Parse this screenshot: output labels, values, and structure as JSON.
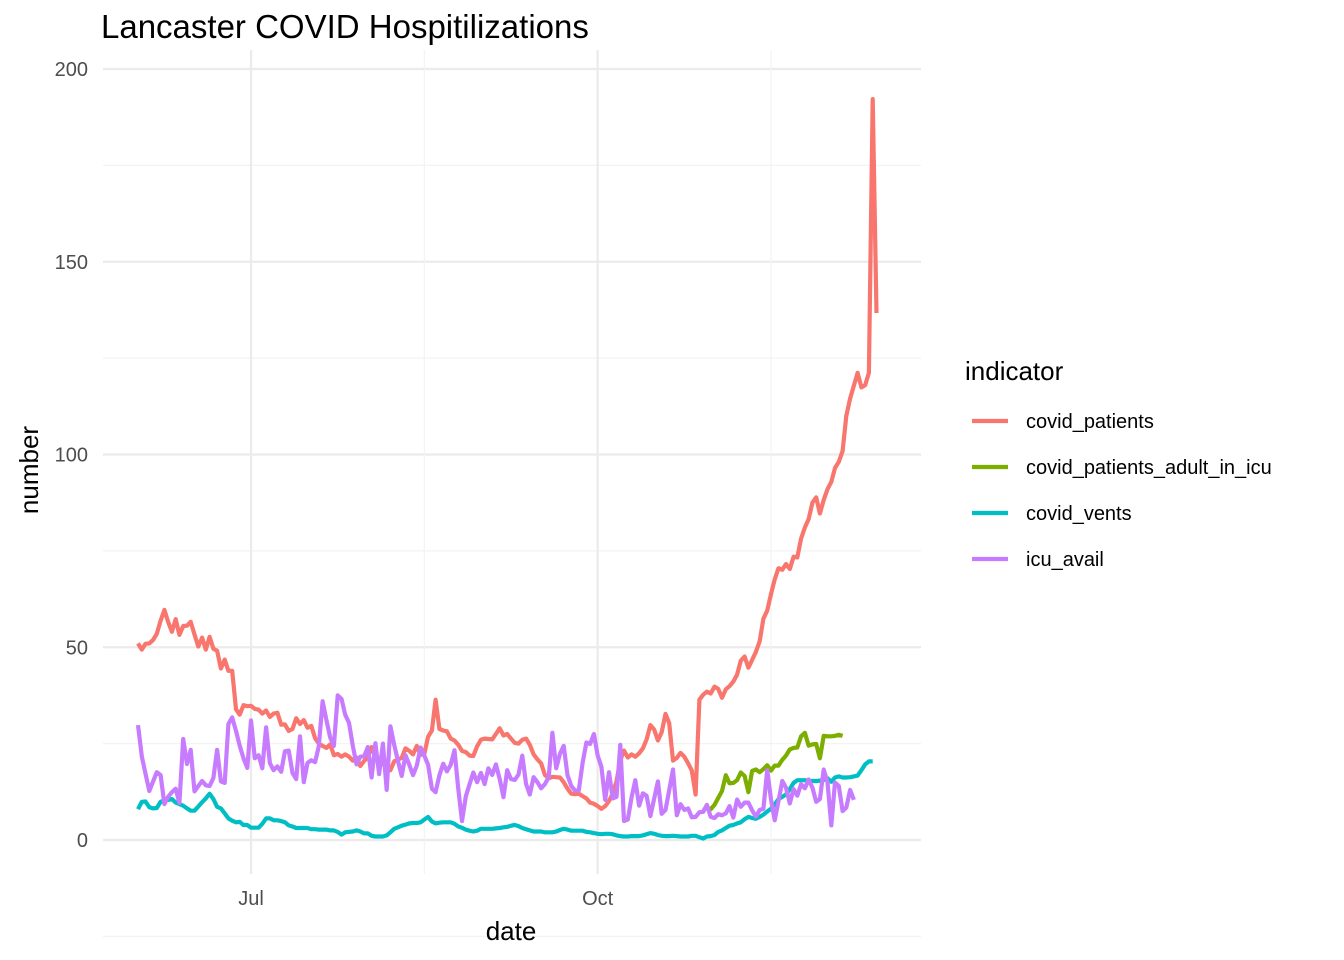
{
  "chart_data": {
    "type": "line",
    "title": "Lancaster COVID Hospitilizations",
    "xlabel": "date",
    "ylabel": "number",
    "x_tick_labels": [
      "Jul",
      "Oct"
    ],
    "y_ticks": [
      0,
      50,
      100,
      150,
      200
    ],
    "ylim": [
      -8,
      200
    ],
    "legend": {
      "title": "indicator",
      "placement": "right"
    },
    "grid": true,
    "x_dates": [
      "2020-06-01",
      "2020-06-02",
      "2020-06-03",
      "2020-06-04",
      "2020-06-05",
      "2020-06-06",
      "2020-06-07",
      "2020-06-08",
      "2020-06-09",
      "2020-06-10",
      "2020-06-11",
      "2020-06-12",
      "2020-06-13",
      "2020-06-14",
      "2020-06-15",
      "2020-06-16",
      "2020-06-17",
      "2020-06-18",
      "2020-06-19",
      "2020-06-20",
      "2020-06-21",
      "2020-06-22",
      "2020-06-23",
      "2020-06-24",
      "2020-06-25",
      "2020-06-26",
      "2020-06-27",
      "2020-06-28",
      "2020-06-29",
      "2020-06-30",
      "2020-07-01",
      "2020-07-02",
      "2020-07-03",
      "2020-07-04",
      "2020-07-05",
      "2020-07-06",
      "2020-07-07",
      "2020-07-08",
      "2020-07-09",
      "2020-07-10",
      "2020-07-11",
      "2020-07-12",
      "2020-07-13",
      "2020-07-14",
      "2020-07-15",
      "2020-07-16",
      "2020-07-17",
      "2020-07-18",
      "2020-07-19",
      "2020-07-20",
      "2020-07-21",
      "2020-07-22",
      "2020-07-23",
      "2020-07-24",
      "2020-07-25",
      "2020-07-26",
      "2020-07-27",
      "2020-07-28",
      "2020-07-29",
      "2020-07-30",
      "2020-07-31",
      "2020-08-01",
      "2020-08-02",
      "2020-08-03",
      "2020-08-04",
      "2020-08-05",
      "2020-08-06",
      "2020-08-07",
      "2020-08-08",
      "2020-08-09",
      "2020-08-10",
      "2020-08-11",
      "2020-08-12",
      "2020-08-13",
      "2020-08-14",
      "2020-08-15",
      "2020-08-16",
      "2020-08-17",
      "2020-08-18",
      "2020-08-19",
      "2020-08-20",
      "2020-08-21",
      "2020-08-22",
      "2020-08-23",
      "2020-08-24",
      "2020-08-25",
      "2020-08-26",
      "2020-08-27",
      "2020-08-28",
      "2020-08-29",
      "2020-08-30",
      "2020-08-31",
      "2020-09-01",
      "2020-09-02",
      "2020-09-03",
      "2020-09-04",
      "2020-09-05",
      "2020-09-06",
      "2020-09-07",
      "2020-09-08",
      "2020-09-09",
      "2020-09-10",
      "2020-09-11",
      "2020-09-12",
      "2020-09-13",
      "2020-09-14",
      "2020-09-15",
      "2020-09-16",
      "2020-09-17",
      "2020-09-18",
      "2020-09-19",
      "2020-09-20",
      "2020-09-21",
      "2020-09-22",
      "2020-09-23",
      "2020-09-24",
      "2020-09-25",
      "2020-09-26",
      "2020-09-27",
      "2020-09-28",
      "2020-09-29",
      "2020-09-30",
      "2020-10-01",
      "2020-10-02",
      "2020-10-03",
      "2020-10-04",
      "2020-10-05",
      "2020-10-06",
      "2020-10-07",
      "2020-10-08",
      "2020-10-09",
      "2020-10-10",
      "2020-10-11",
      "2020-10-12",
      "2020-10-13",
      "2020-10-14",
      "2020-10-15",
      "2020-10-16",
      "2020-10-17",
      "2020-10-18",
      "2020-10-19",
      "2020-10-20",
      "2020-10-21",
      "2020-10-22",
      "2020-10-23",
      "2020-10-24",
      "2020-10-25",
      "2020-10-26",
      "2020-10-27",
      "2020-10-28",
      "2020-10-29",
      "2020-10-30",
      "2020-10-31",
      "2020-11-01",
      "2020-11-02",
      "2020-11-03",
      "2020-11-04",
      "2020-11-05",
      "2020-11-06",
      "2020-11-07",
      "2020-11-08",
      "2020-11-09",
      "2020-11-10",
      "2020-11-11",
      "2020-11-12",
      "2020-11-13",
      "2020-11-14",
      "2020-11-15",
      "2020-11-16",
      "2020-11-17",
      "2020-11-18",
      "2020-11-19",
      "2020-11-20",
      "2020-11-21",
      "2020-11-22",
      "2020-11-23",
      "2020-11-24",
      "2020-11-25",
      "2020-11-26",
      "2020-11-27",
      "2020-11-28",
      "2020-11-29",
      "2020-11-30",
      "2020-12-01",
      "2020-12-02",
      "2020-12-03",
      "2020-12-04",
      "2020-12-05",
      "2020-12-06",
      "2020-12-07",
      "2020-12-08",
      "2020-12-09",
      "2020-12-10",
      "2020-12-11",
      "2020-12-12",
      "2020-12-13",
      "2020-12-14",
      "2020-12-15",
      "2020-12-16"
    ],
    "series": [
      {
        "name": "covid_patients",
        "color": "#f8766d",
        "values": [
          51.0,
          49.4,
          50.9,
          51.0,
          51.9,
          53.5,
          56.9,
          59.7,
          56.6,
          54.0,
          57.3,
          53.2,
          55.5,
          55.6,
          56.6,
          53.3,
          50.2,
          52.5,
          49.4,
          52.7,
          49.6,
          49.1,
          44.5,
          46.8,
          43.9,
          43.9,
          33.9,
          32.5,
          35.0,
          34.7,
          34.8,
          34.0,
          33.8,
          32.8,
          33.6,
          31.9,
          32.8,
          33.0,
          29.9,
          30.0,
          28.3,
          28.8,
          31.6,
          30.1,
          31.1,
          29.1,
          29.6,
          26.4,
          25.0,
          24.4,
          23.9,
          24.8,
          22.0,
          22.3,
          21.6,
          22.2,
          21.6,
          20.6,
          21.4,
          19.2,
          20.5,
          21.5,
          24.1,
          21.4,
          20.0,
          19.9,
          18.4,
          18.1,
          20.4,
          20.9,
          21.3,
          23.8,
          23.1,
          22.2,
          24.4,
          22.1,
          22.3,
          26.8,
          28.4,
          36.4,
          28.8,
          28.4,
          28.2,
          26.3,
          25.8,
          24.7,
          23.1,
          22.8,
          21.9,
          21.8,
          24.3,
          26.0,
          26.3,
          26.2,
          26.1,
          27.5,
          29.0,
          27.1,
          27.5,
          26.3,
          25.2,
          25.0,
          26.0,
          26.3,
          24.7,
          22.2,
          20.9,
          19.9,
          16.9,
          16.0,
          16.4,
          16.3,
          16.2,
          15.0,
          13.3,
          12.0,
          11.9,
          12.0,
          11.4,
          10.8,
          9.7,
          9.4,
          8.8,
          8.1,
          8.8,
          10.1,
          12.1,
          15.2,
          20.7,
          23.2,
          21.4,
          22.2,
          21.6,
          22.5,
          23.8,
          26.1,
          29.8,
          28.6,
          25.8,
          28.0,
          32.7,
          30.3,
          20.6,
          21.3,
          22.6,
          21.6,
          19.9,
          18.0,
          11.8,
          36.4,
          37.7,
          38.5,
          38.0,
          39.8,
          39.2,
          36.9,
          39.1,
          39.9,
          41.1,
          42.9,
          46.5,
          47.6,
          44.7,
          46.7,
          48.8,
          51.6,
          57.4,
          59.5,
          63.8,
          67.6,
          70.5,
          70.1,
          71.6,
          70.3,
          73.5,
          73.3,
          78.2,
          81.1,
          83.2,
          87.5,
          88.9,
          84.7,
          88.2,
          91.0,
          92.9,
          96.5,
          98.1,
          100.9,
          110.0,
          114.5,
          117.9,
          121.2,
          117.4,
          118.0,
          121.2,
          192.2,
          136.7
        ]
      },
      {
        "name": "covid_patients_adult_in_icu",
        "color": "#7cae00",
        "values": [
          null,
          null,
          null,
          null,
          null,
          null,
          null,
          null,
          null,
          null,
          null,
          null,
          null,
          null,
          null,
          null,
          null,
          null,
          null,
          null,
          null,
          null,
          null,
          null,
          null,
          null,
          null,
          null,
          null,
          null,
          null,
          null,
          null,
          null,
          null,
          null,
          null,
          null,
          null,
          null,
          null,
          null,
          null,
          null,
          null,
          null,
          null,
          null,
          null,
          null,
          null,
          null,
          null,
          null,
          null,
          null,
          null,
          null,
          null,
          null,
          null,
          null,
          null,
          null,
          null,
          null,
          null,
          null,
          null,
          null,
          null,
          null,
          null,
          null,
          null,
          null,
          null,
          null,
          null,
          null,
          null,
          null,
          null,
          null,
          null,
          null,
          null,
          null,
          null,
          null,
          null,
          null,
          null,
          null,
          null,
          null,
          null,
          null,
          null,
          null,
          null,
          null,
          null,
          null,
          null,
          null,
          null,
          null,
          null,
          null,
          null,
          null,
          null,
          null,
          null,
          null,
          null,
          null,
          null,
          null,
          null,
          null,
          null,
          null,
          null,
          null,
          null,
          null,
          null,
          null,
          null,
          null,
          null,
          null,
          null,
          null,
          null,
          null,
          null,
          null,
          null,
          null,
          null,
          null,
          null,
          null,
          null,
          null,
          null,
          null,
          7.8,
          8.3,
          8.0,
          9.1,
          10.9,
          12.7,
          16.8,
          14.7,
          14.8,
          15.5,
          17.5,
          16.6,
          12.4,
          17.9,
          18.3,
          17.6,
          18.4,
          19.4,
          18.0,
          19.3,
          19.3,
          20.8,
          21.9,
          23.5,
          23.9,
          24.0,
          26.9,
          27.8,
          24.5,
          24.8,
          24.9,
          21.2,
          27.0,
          26.9,
          26.9,
          27.0,
          27.3,
          27.0
        ]
      },
      {
        "name": "covid_vents",
        "color": "#00bfc4",
        "values": [
          8.0,
          9.9,
          10.0,
          8.5,
          8.2,
          8.3,
          9.9,
          10.3,
          10.4,
          10.6,
          9.7,
          9.3,
          8.9,
          8.2,
          7.6,
          7.6,
          8.7,
          9.8,
          10.8,
          12.0,
          10.6,
          8.6,
          8.2,
          6.9,
          5.6,
          5.0,
          4.6,
          4.7,
          3.9,
          3.9,
          3.2,
          3.2,
          3.2,
          4.2,
          5.6,
          5.6,
          5.1,
          5.1,
          4.9,
          4.6,
          3.8,
          3.5,
          3.1,
          3.1,
          3.1,
          3.1,
          2.8,
          2.8,
          2.7,
          2.7,
          2.7,
          2.5,
          2.5,
          2.1,
          1.4,
          2.0,
          2.1,
          2.2,
          2.5,
          2.2,
          1.7,
          1.7,
          1.1,
          0.9,
          0.9,
          0.9,
          1.2,
          2.0,
          2.9,
          3.3,
          3.7,
          4.0,
          4.3,
          4.4,
          4.4,
          4.6,
          5.3,
          6.0,
          4.8,
          4.3,
          4.5,
          4.6,
          4.6,
          4.6,
          4.2,
          3.5,
          3.2,
          2.7,
          2.4,
          2.2,
          2.4,
          2.9,
          2.9,
          2.9,
          2.9,
          3.0,
          3.1,
          3.3,
          3.4,
          3.7,
          3.9,
          3.6,
          3.1,
          2.8,
          2.5,
          2.2,
          2.2,
          2.2,
          2.0,
          2.0,
          2.0,
          2.2,
          2.6,
          2.9,
          2.7,
          2.4,
          2.4,
          2.4,
          2.4,
          2.1,
          2.0,
          1.8,
          1.6,
          1.5,
          1.6,
          1.6,
          1.5,
          1.2,
          1.0,
          0.9,
          0.9,
          1.0,
          1.0,
          1.0,
          1.2,
          1.5,
          1.8,
          1.6,
          1.3,
          1.1,
          1.0,
          1.0,
          1.1,
          1.0,
          0.9,
          0.9,
          0.9,
          1.1,
          1.1,
          0.7,
          0.4,
          0.9,
          1.0,
          1.3,
          2.1,
          2.5,
          3.1,
          3.7,
          3.9,
          4.3,
          4.6,
          5.4,
          6.0,
          5.7,
          5.5,
          6.0,
          6.6,
          7.4,
          8.1,
          9.2,
          10.6,
          11.2,
          11.8,
          13.2,
          14.8,
          15.5,
          15.5,
          15.5,
          15.3,
          15.3,
          15.3,
          15.4,
          15.6,
          16.0,
          15.1,
          16.2,
          16.5,
          16.2,
          16.2,
          16.3,
          16.5,
          16.7,
          18.1,
          19.6,
          20.4,
          20.4
        ]
      },
      {
        "name": "icu_avail",
        "color": "#c77cff",
        "values": [
          29.8,
          21.7,
          17.2,
          12.7,
          15.2,
          17.6,
          16.8,
          9.3,
          11.2,
          12.4,
          13.3,
          9.6,
          26.2,
          19.7,
          23.4,
          12.6,
          14.0,
          15.3,
          14.2,
          14.0,
          16.1,
          23.4,
          15.2,
          14.8,
          30.1,
          31.8,
          28.3,
          24.5,
          21.2,
          18.7,
          31.0,
          21.2,
          22.0,
          18.6,
          29.2,
          19.9,
          18.1,
          19.1,
          17.7,
          23.0,
          23.2,
          17.4,
          15.8,
          26.9,
          15.0,
          20.0,
          20.7,
          20.2,
          24.3,
          36.0,
          31.1,
          26.6,
          24.4,
          37.5,
          36.6,
          32.5,
          30.4,
          24.4,
          19.6,
          21.6,
          21.7,
          24.1,
          16.2,
          25.1,
          17.1,
          25.0,
          13.0,
          29.5,
          24.7,
          20.5,
          16.6,
          22.0,
          19.5,
          16.8,
          19.3,
          24.0,
          21.9,
          19.5,
          13.3,
          12.4,
          16.8,
          19.8,
          17.8,
          19.5,
          23.3,
          13.2,
          4.9,
          11.3,
          14.5,
          17.5,
          15.0,
          17.4,
          14.5,
          18.6,
          16.9,
          19.6,
          15.8,
          11.1,
          18.1,
          15.8,
          15.6,
          17.0,
          21.9,
          14.5,
          11.8,
          16.3,
          15.0,
          13.4,
          14.5,
          16.3,
          27.8,
          18.6,
          22.4,
          24.4,
          16.8,
          14.0,
          12.8,
          12.9,
          20.0,
          25.3,
          24.9,
          27.5,
          21.9,
          19.0,
          10.4,
          17.6,
          10.8,
          11.2,
          24.7,
          4.9,
          5.3,
          11.1,
          15.5,
          8.9,
          12.1,
          11.5,
          6.2,
          10.8,
          15.2,
          6.8,
          7.8,
          12.9,
          18.3,
          6.4,
          9.3,
          7.8,
          8.2,
          5.9,
          6.0,
          7.2,
          7.3,
          9.1,
          6.0,
          5.7,
          6.7,
          6.4,
          6.9,
          8.8,
          5.8,
          10.5,
          8.6,
          9.7,
          9.7,
          7.7,
          6.1,
          7.8,
          8.1,
          18.1,
          10.5,
          5.1,
          10.1,
          15.3,
          13.6,
          9.5,
          13.2,
          11.5,
          14.5,
          13.4,
          15.7,
          13.6,
          9.9,
          10.6,
          18.3,
          15.0,
          3.8,
          14.9,
          14.0,
          7.5,
          8.4,
          13.0,
          10.4
        ]
      }
    ]
  }
}
